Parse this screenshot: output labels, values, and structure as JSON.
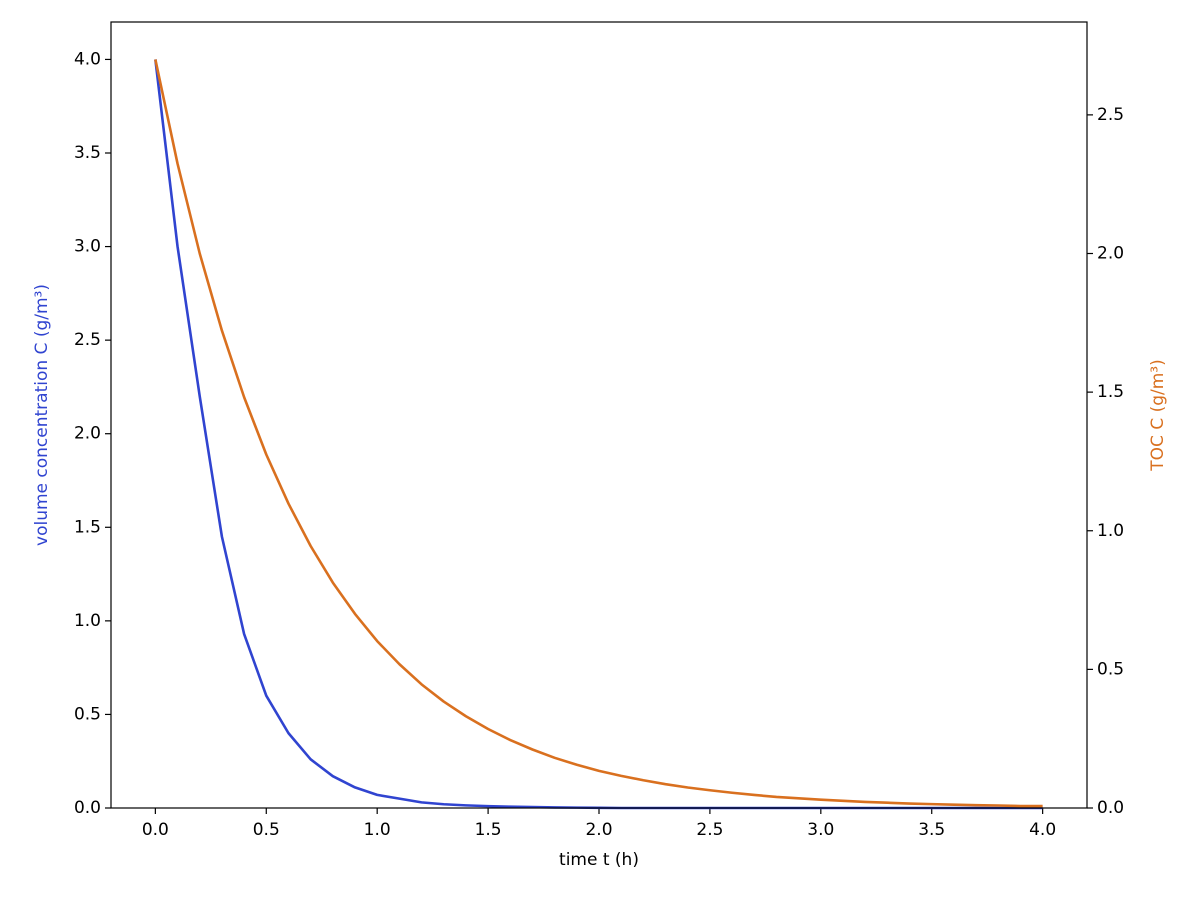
{
  "chart_data": {
    "type": "line",
    "xlabel": "time t (h)",
    "ylabel": "volume concentration C (g/m³)",
    "y2label": "TOC C (g/m³)",
    "x": [
      0.0,
      0.1,
      0.2,
      0.3,
      0.4,
      0.5,
      0.6,
      0.7,
      0.8,
      0.9,
      1.0,
      1.1,
      1.2,
      1.3,
      1.4,
      1.5,
      1.6,
      1.7,
      1.8,
      1.9,
      2.0,
      2.1,
      2.2,
      2.3,
      2.4,
      2.5,
      2.6,
      2.7,
      2.8,
      2.9,
      3.0,
      3.1,
      3.2,
      3.3,
      3.4,
      3.5,
      3.6,
      3.7,
      3.8,
      3.9,
      4.0
    ],
    "series": [
      {
        "name": "volume concentration",
        "color": "#3044d0",
        "axis": "y",
        "values": [
          4.0,
          3.0,
          2.2,
          1.45,
          0.93,
          0.6,
          0.4,
          0.26,
          0.17,
          0.11,
          0.07,
          0.05,
          0.03,
          0.02,
          0.014,
          0.01,
          0.007,
          0.005,
          0.003,
          0.002,
          0.001,
          0,
          0,
          0,
          0,
          0,
          0,
          0,
          0,
          0,
          0,
          0,
          0,
          0,
          0,
          0,
          0,
          0,
          0,
          0,
          0
        ]
      },
      {
        "name": "TOC",
        "color": "#d9701f",
        "axis": "y2",
        "values": [
          2.7,
          2.324,
          2.0,
          1.722,
          1.482,
          1.275,
          1.098,
          0.945,
          0.813,
          0.7,
          0.602,
          0.519,
          0.446,
          0.384,
          0.331,
          0.285,
          0.245,
          0.211,
          0.181,
          0.156,
          0.134,
          0.116,
          0.1,
          0.086,
          0.074,
          0.064,
          0.055,
          0.047,
          0.04,
          0.035,
          0.03,
          0.026,
          0.022,
          0.019,
          0.016,
          0.014,
          0.012,
          0.01,
          0.009,
          0.007,
          0.007
        ]
      }
    ],
    "xlim": [
      -0.2,
      4.2
    ],
    "ylim": [
      0,
      4.2
    ],
    "y2lim": [
      0,
      2.835
    ],
    "xticks": [
      {
        "value": 0,
        "label": "0.0"
      },
      {
        "value": 0.5,
        "label": "0.5"
      },
      {
        "value": 1,
        "label": "1.0"
      },
      {
        "value": 1.5,
        "label": "1.5"
      },
      {
        "value": 2,
        "label": "2.0"
      },
      {
        "value": 2.5,
        "label": "2.5"
      },
      {
        "value": 3,
        "label": "3.0"
      },
      {
        "value": 3.5,
        "label": "3.5"
      },
      {
        "value": 4,
        "label": "4.0"
      }
    ],
    "yticks": [
      {
        "value": 0,
        "label": "0.0"
      },
      {
        "value": 0.5,
        "label": "0.5"
      },
      {
        "value": 1,
        "label": "1.0"
      },
      {
        "value": 1.5,
        "label": "1.5"
      },
      {
        "value": 2,
        "label": "2.0"
      },
      {
        "value": 2.5,
        "label": "2.5"
      },
      {
        "value": 3,
        "label": "3.0"
      },
      {
        "value": 3.5,
        "label": "3.5"
      },
      {
        "value": 4,
        "label": "4.0"
      }
    ],
    "y2ticks": [
      {
        "value": 0,
        "label": "0.0"
      },
      {
        "value": 0.5,
        "label": "0.5"
      },
      {
        "value": 1,
        "label": "1.0"
      },
      {
        "value": 1.5,
        "label": "1.5"
      },
      {
        "value": 2,
        "label": "2.0"
      },
      {
        "value": 2.5,
        "label": "2.5"
      }
    ],
    "grid": false
  }
}
